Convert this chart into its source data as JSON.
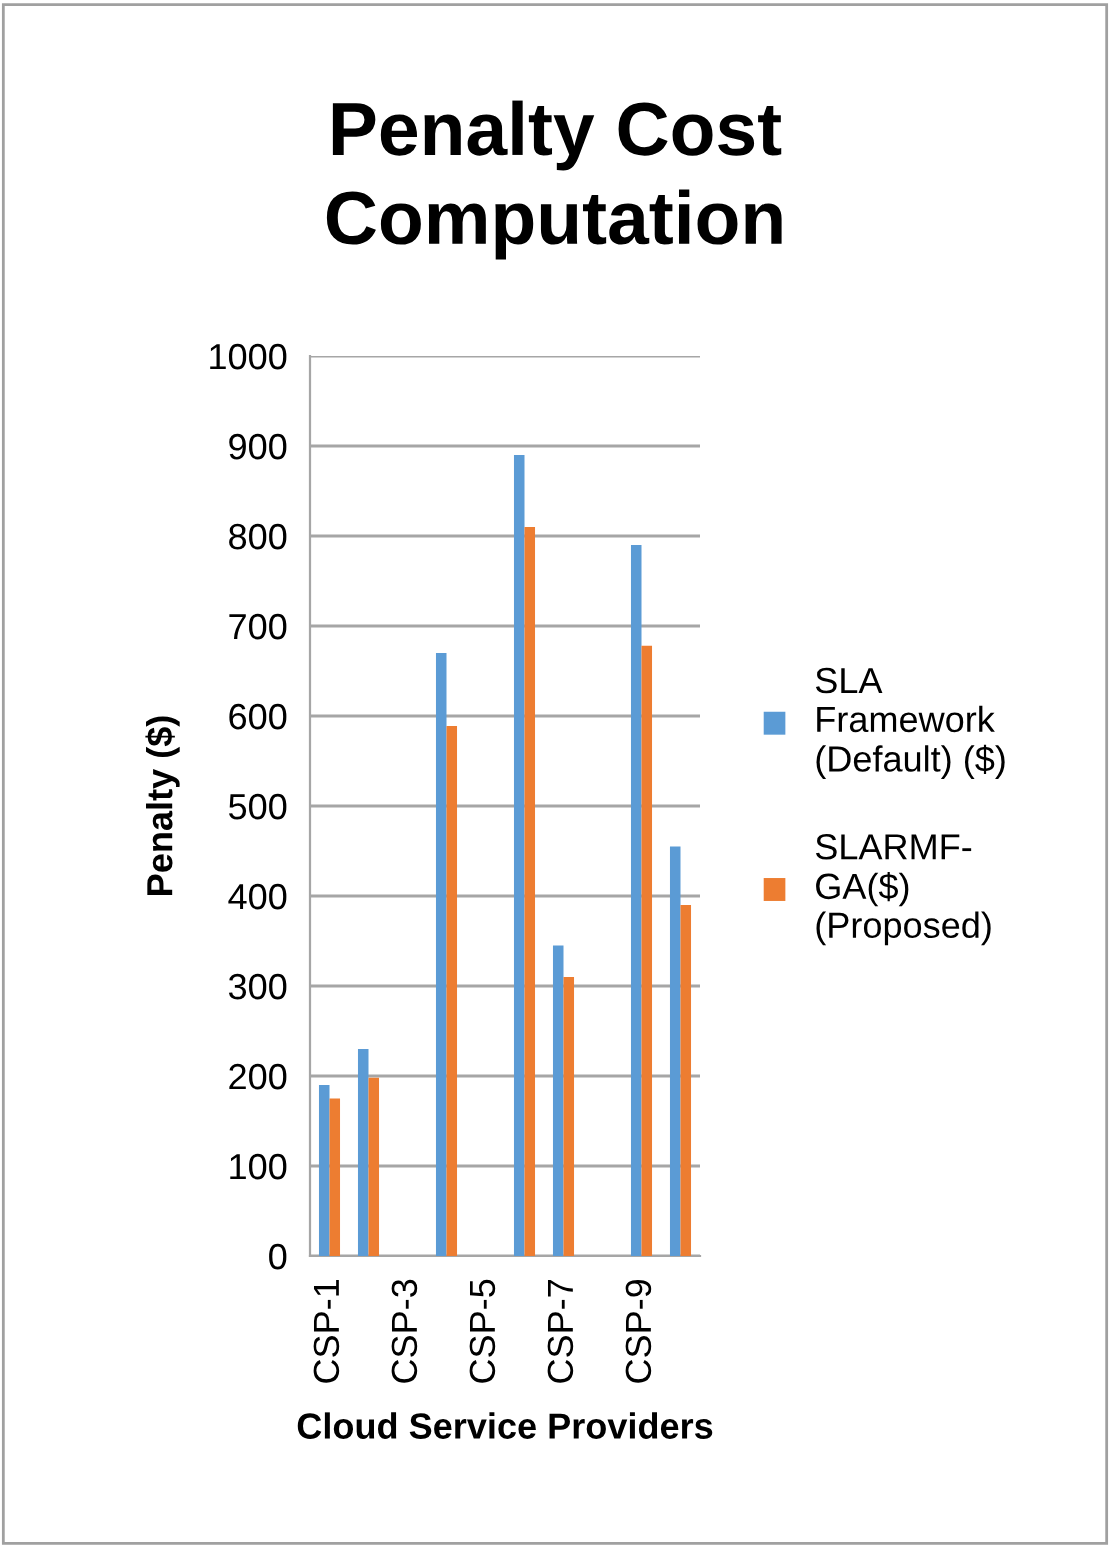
{
  "chart_data": {
    "type": "bar",
    "title": "Penalty Cost\nComputation",
    "xlabel": "Cloud Service Providers",
    "ylabel": "Penalty ($)",
    "categories": [
      "CSP-1",
      null,
      "CSP-3",
      null,
      "CSP-5",
      null,
      "CSP-7",
      null,
      "CSP-9",
      null
    ],
    "series": [
      {
        "name": "SLA\nFramework\n(Default) ($)",
        "color": "#5b9bd5",
        "values": [
          190,
          230,
          null,
          670,
          null,
          890,
          345,
          null,
          790,
          455
        ]
      },
      {
        "name": "SLARMF-\nGA($)\n(Proposed)",
        "color": "#ed7d31",
        "values": [
          175,
          198,
          null,
          589,
          null,
          810,
          310,
          null,
          678,
          390
        ]
      }
    ],
    "ylim": [
      0,
      1000
    ],
    "yticks": [
      0,
      100,
      200,
      300,
      400,
      500,
      600,
      700,
      800,
      900,
      1000
    ],
    "grid": "y",
    "legend": "right"
  }
}
